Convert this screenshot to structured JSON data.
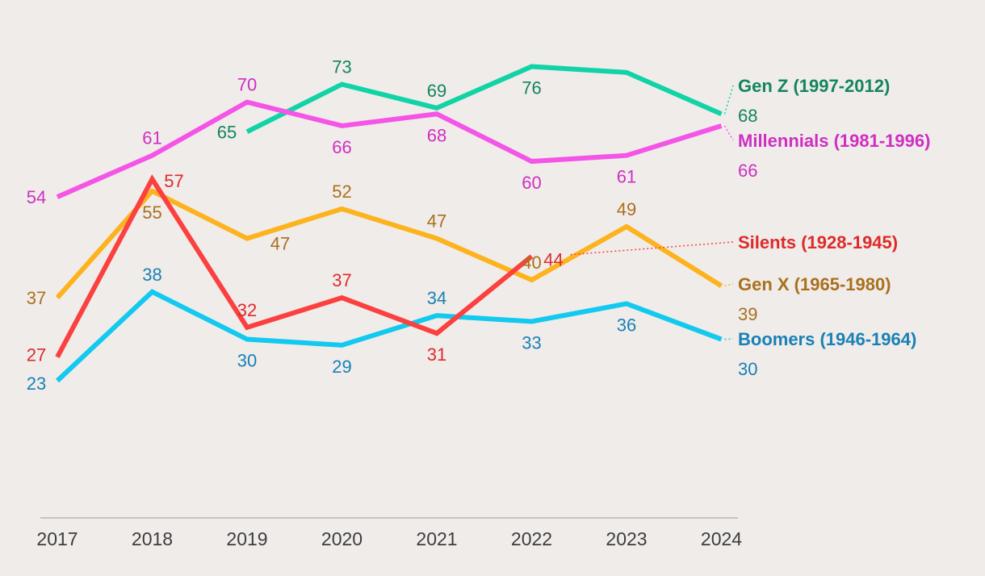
{
  "chart_data": {
    "type": "line",
    "x": [
      "2017",
      "2018",
      "2019",
      "2020",
      "2021",
      "2022",
      "2023",
      "2024"
    ],
    "ylim": [
      0,
      100
    ],
    "grid": false,
    "legend": "right-inline",
    "series": [
      {
        "key": "genz",
        "name": "Gen Z (1997-2012)",
        "line_color": "#10d3a6",
        "text_color": "#13855f",
        "values": [
          null,
          null,
          65,
          73,
          69,
          76,
          75,
          68
        ],
        "labels": [
          "",
          "",
          "65",
          "73",
          "69",
          "76",
          "",
          "68"
        ],
        "end_value": "68"
      },
      {
        "key": "millennials",
        "name": "Millennials (1981-1996)",
        "line_color": "#f455e6",
        "text_color": "#cf2fc2",
        "values": [
          54,
          61,
          70,
          66,
          68,
          60,
          61,
          66
        ],
        "labels": [
          "54",
          "61",
          "70",
          "66",
          "68",
          "60",
          "61",
          "66"
        ],
        "end_value": "66"
      },
      {
        "key": "silents",
        "name": "Silents (1928-1945)",
        "line_color": "#fb4040",
        "text_color": "#dd2b2b",
        "values": [
          27,
          57,
          32,
          37,
          31,
          44,
          null,
          null
        ],
        "labels": [
          "27",
          "57",
          "32",
          "37",
          "31",
          "44",
          "",
          ""
        ],
        "end_value": ""
      },
      {
        "key": "genx",
        "name": "Gen X (1965-1980)",
        "line_color": "#fcb31d",
        "text_color": "#a9701c",
        "values": [
          37,
          55,
          47,
          52,
          47,
          40,
          49,
          39
        ],
        "labels": [
          "37",
          "55",
          "47",
          "52",
          "47",
          "40",
          "49",
          "39"
        ],
        "end_value": "39"
      },
      {
        "key": "boomers",
        "name": "Boomers (1946-1964)",
        "line_color": "#12c9ef",
        "text_color": "#1881b6",
        "values": [
          23,
          38,
          30,
          29,
          34,
          33,
          36,
          30
        ],
        "labels": [
          "23",
          "38",
          "30",
          "29",
          "34",
          "33",
          "36",
          "30"
        ],
        "end_value": "30"
      }
    ]
  }
}
